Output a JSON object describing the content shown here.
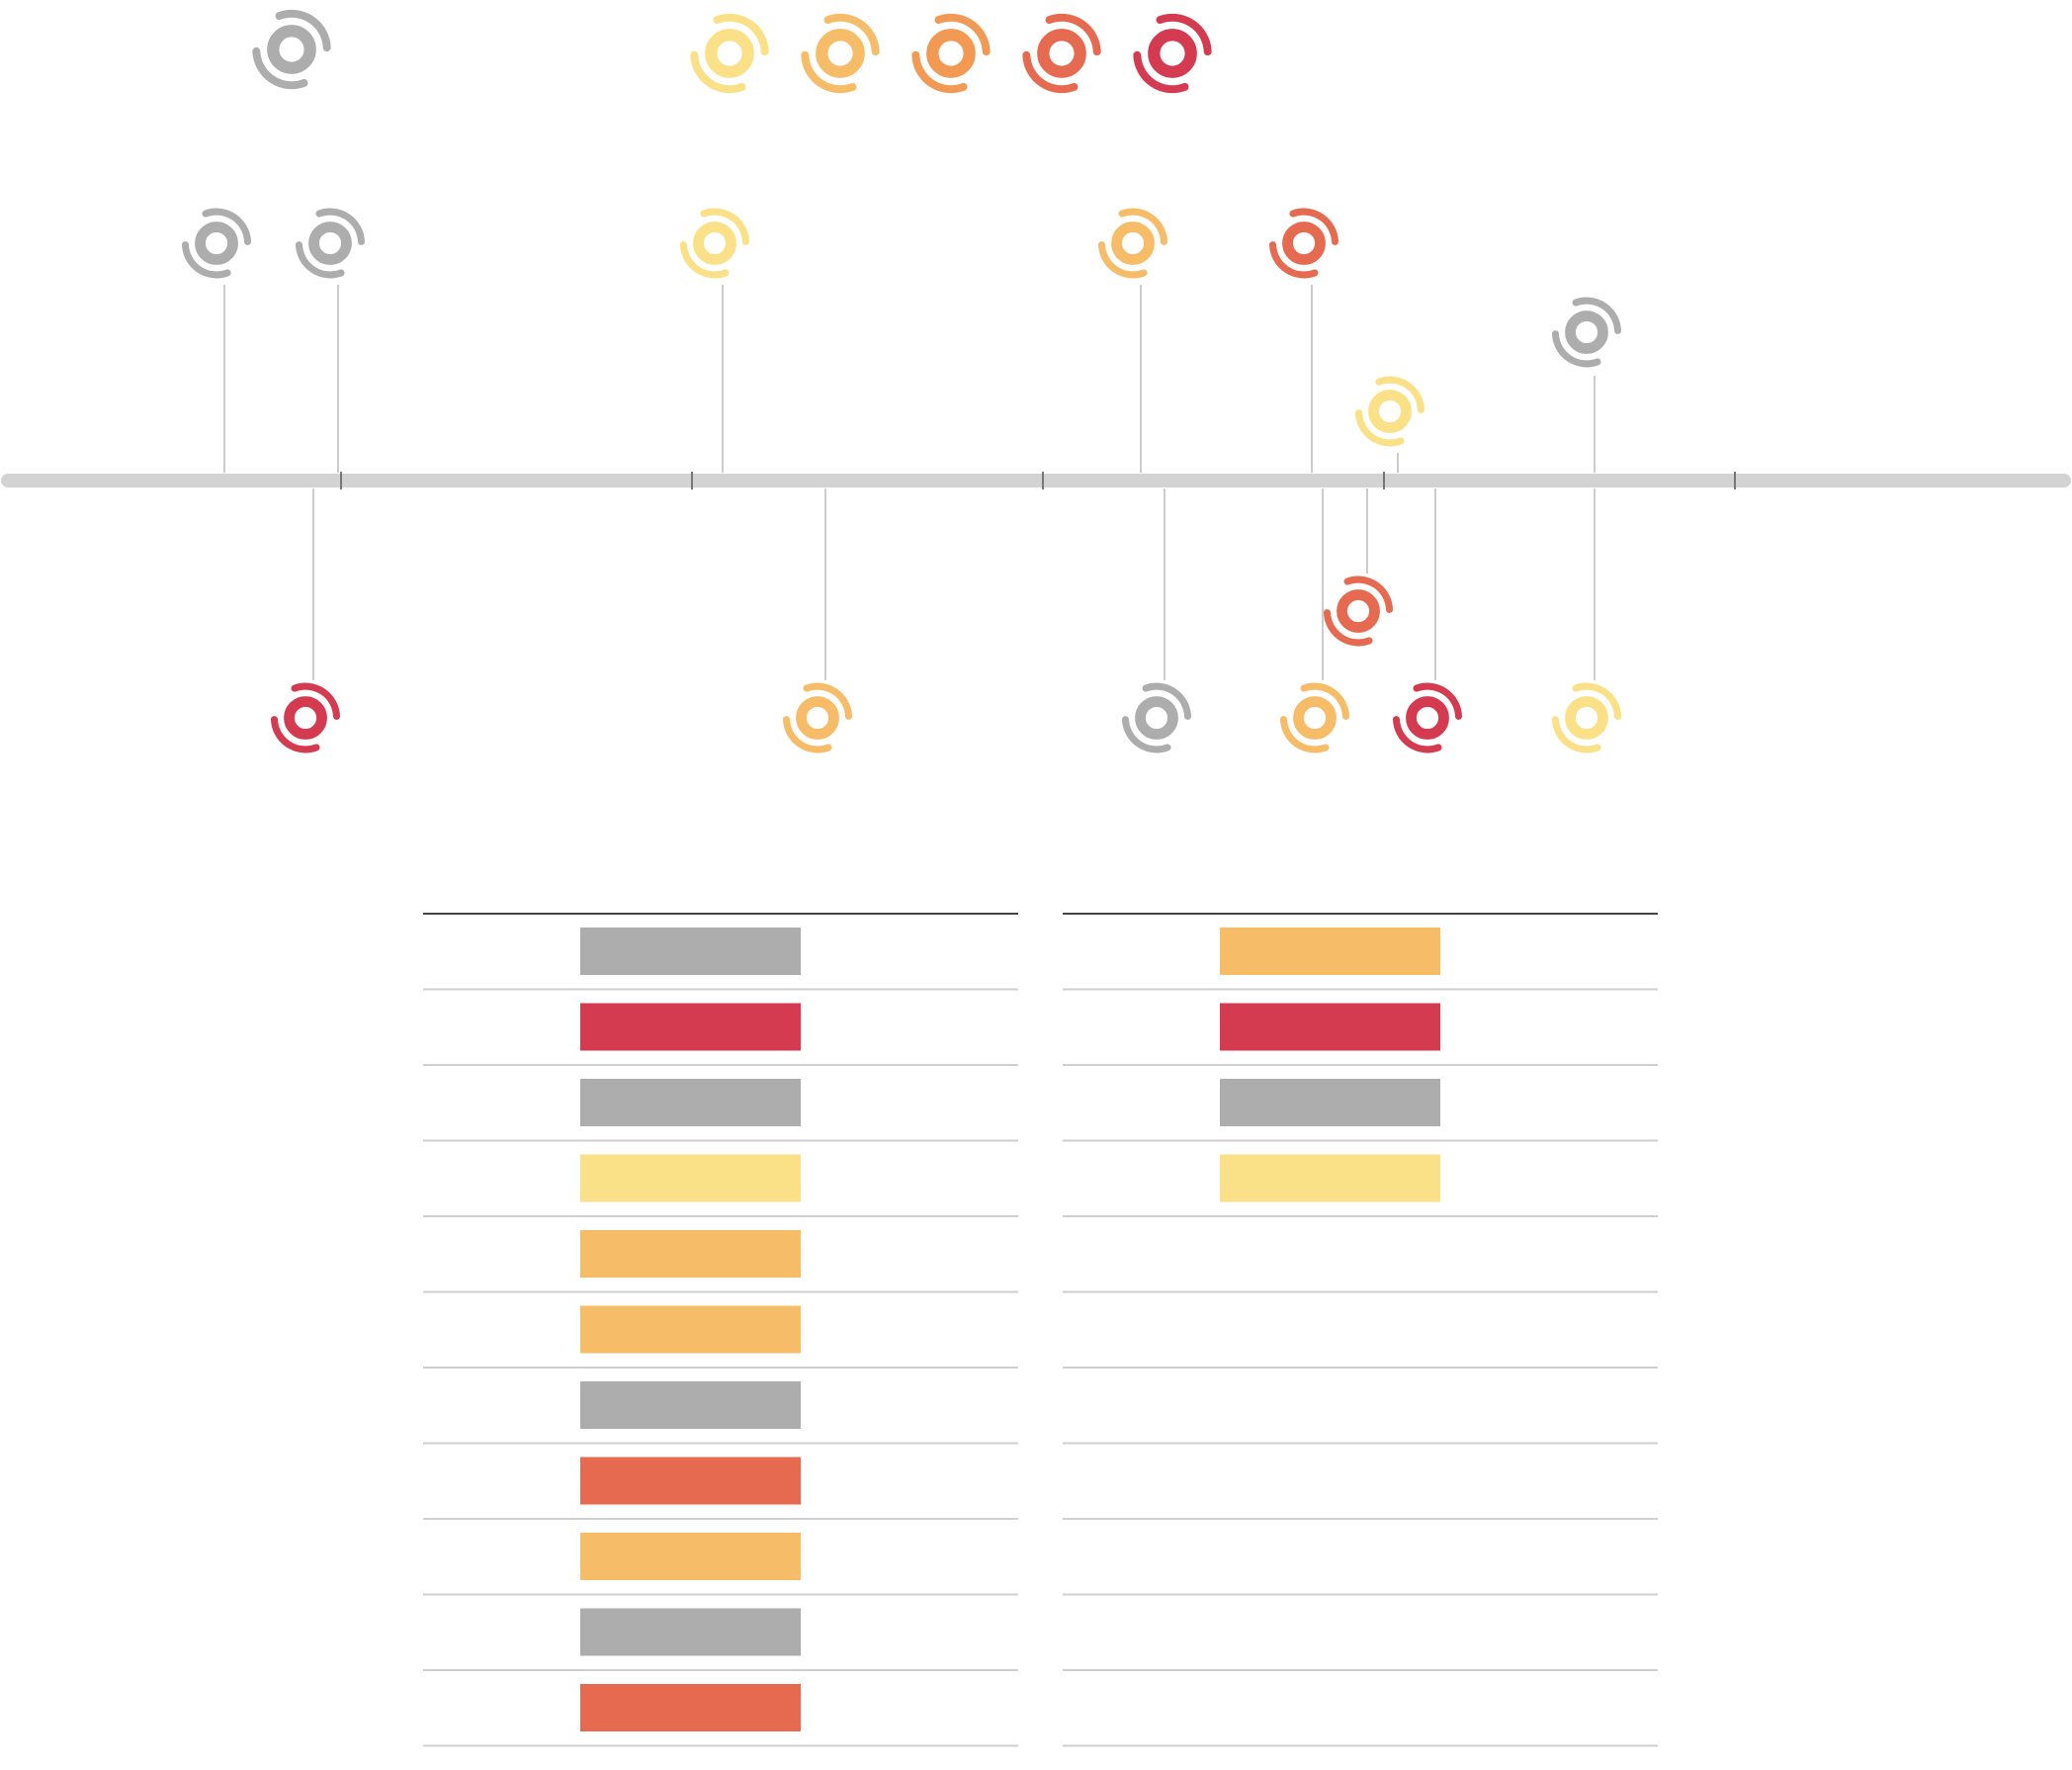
{
  "colors": {
    "gray": "#adadad",
    "cat1": "#fae087",
    "cat2": "#f7bc68",
    "cat3": "#f29a54",
    "cat4": "#e56a4f",
    "cat5": "#d43b50",
    "axis": "#d3d3d3",
    "stem": "#cccccc",
    "rule": "#cfcfcf",
    "rule_top": "#444444"
  },
  "legend": {
    "categories": [
      "gray",
      "cat1",
      "cat2",
      "cat3",
      "cat4",
      "cat5"
    ]
  },
  "timeline": {
    "icons": "hurricane-icon",
    "events_above": [
      {
        "category": "gray"
      },
      {
        "category": "gray"
      },
      {
        "category": "cat1"
      },
      {
        "category": "cat2"
      },
      {
        "category": "cat4"
      },
      {
        "category": "cat1"
      },
      {
        "category": "gray"
      }
    ],
    "events_below": [
      {
        "category": "cat5"
      },
      {
        "category": "cat2"
      },
      {
        "category": "gray"
      },
      {
        "category": "cat4"
      },
      {
        "category": "cat2"
      },
      {
        "category": "cat5"
      },
      {
        "category": "cat1"
      }
    ]
  },
  "tables": [
    {
      "rows": [
        "gray",
        "cat5",
        "gray",
        "cat1",
        "cat2",
        "cat2",
        "gray",
        "cat4",
        "cat2",
        "gray",
        "cat4"
      ]
    },
    {
      "rows": [
        "cat2",
        "cat5",
        "gray",
        "cat1",
        "",
        "",
        "",
        "",
        "",
        "",
        ""
      ]
    }
  ]
}
